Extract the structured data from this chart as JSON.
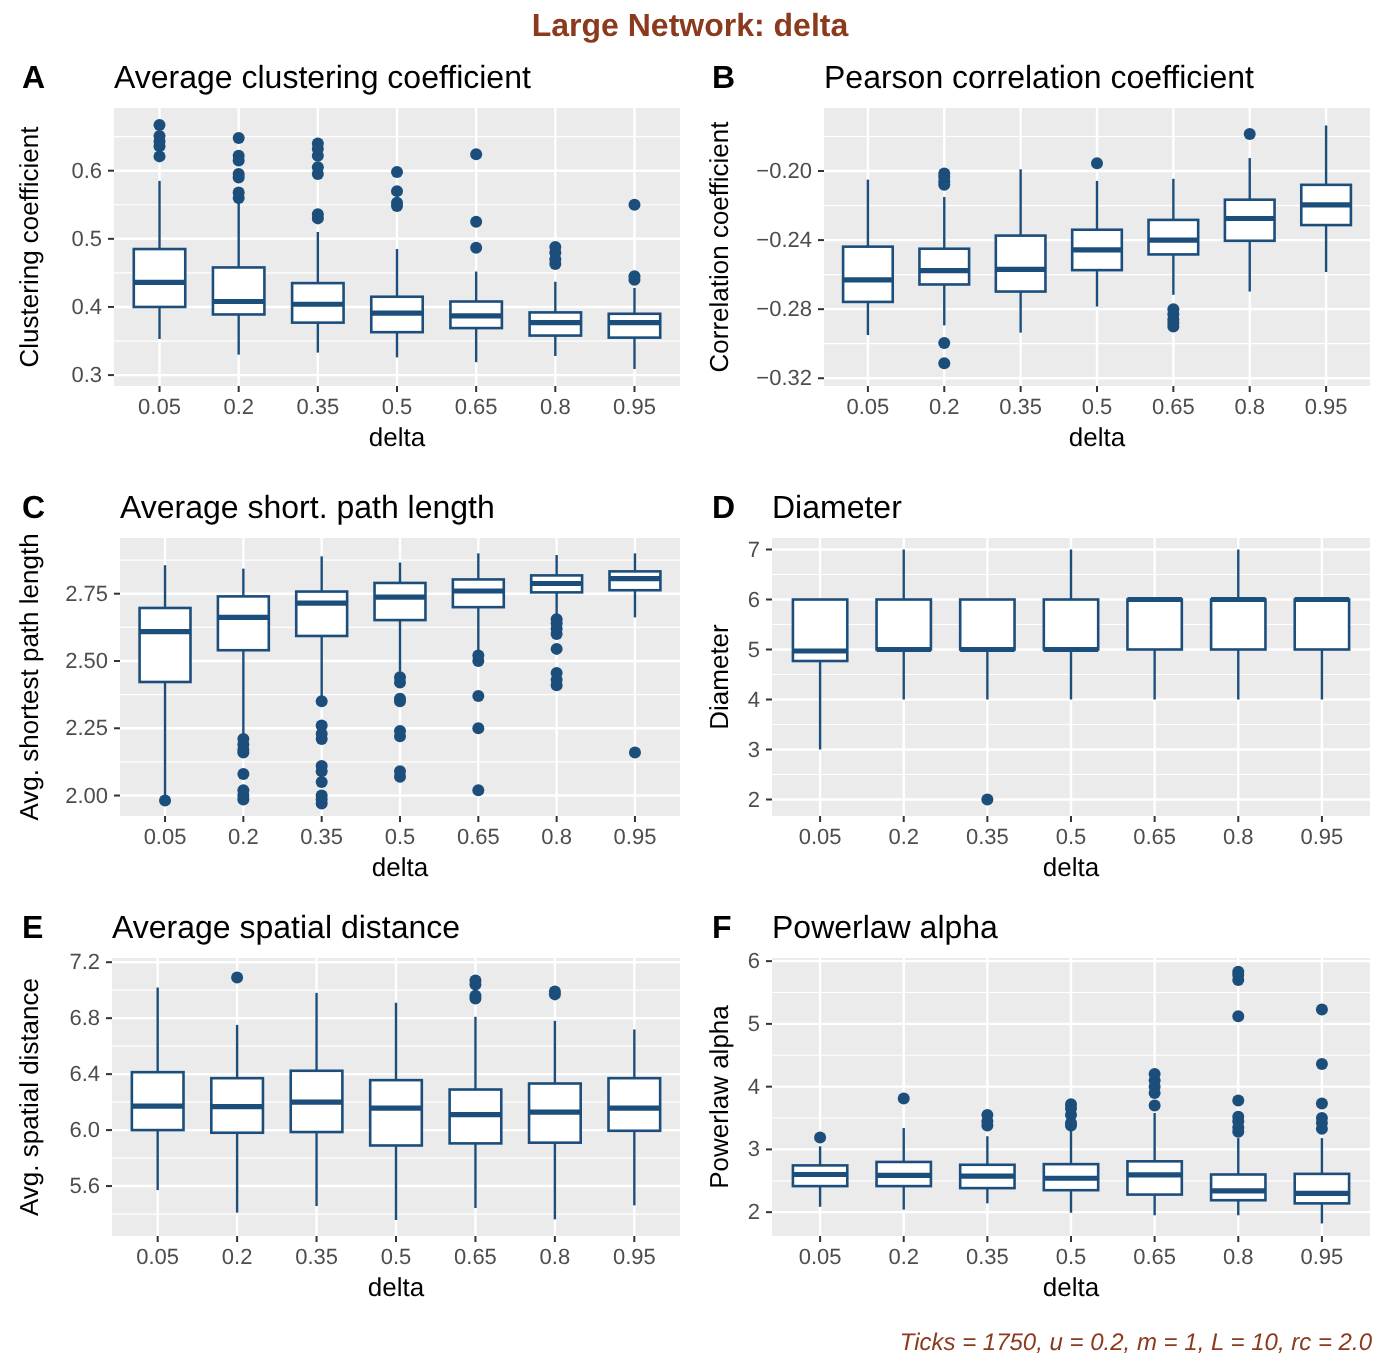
{
  "chart_data": [
    {
      "type": "box",
      "title": "Average clustering coefficient",
      "xlabel": "delta",
      "ylabel": "Clustering coefficient",
      "annotations": [
        "A",
        "Large Network: delta"
      ],
      "categories": [
        "0.05",
        "0.2",
        "0.35",
        "0.5",
        "0.65",
        "0.8",
        "0.95"
      ],
      "ylim": [
        0.284,
        0.692
      ],
      "yticks": [
        {
          "value": 0.3,
          "label": "0.3"
        },
        {
          "value": 0.4,
          "label": "0.4"
        },
        {
          "value": 0.5,
          "label": "0.5"
        },
        {
          "value": 0.6,
          "label": "0.6"
        }
      ],
      "grid": true,
      "series": [
        {
          "color": "#1c4e7c",
          "boxes": [
            {
              "low": 0.353,
              "q1": 0.4,
              "median": 0.436,
              "q3": 0.485,
              "high": 0.585,
              "outliers": [
                0.621,
                0.636,
                0.643,
                0.651,
                0.667
              ]
            },
            {
              "low": 0.33,
              "q1": 0.389,
              "median": 0.408,
              "q3": 0.458,
              "high": 0.555,
              "outliers": [
                0.56,
                0.568,
                0.59,
                0.595,
                0.615,
                0.622,
                0.648
              ]
            },
            {
              "low": 0.333,
              "q1": 0.377,
              "median": 0.404,
              "q3": 0.435,
              "high": 0.51,
              "outliers": [
                0.53,
                0.536,
                0.595,
                0.605,
                0.622,
                0.632,
                0.64
              ]
            },
            {
              "low": 0.326,
              "q1": 0.363,
              "median": 0.391,
              "q3": 0.415,
              "high": 0.485,
              "outliers": [
                0.548,
                0.553,
                0.57,
                0.598
              ]
            },
            {
              "low": 0.319,
              "q1": 0.369,
              "median": 0.387,
              "q3": 0.408,
              "high": 0.452,
              "outliers": [
                0.487,
                0.525,
                0.624
              ]
            },
            {
              "low": 0.328,
              "q1": 0.358,
              "median": 0.377,
              "q3": 0.392,
              "high": 0.437,
              "outliers": [
                0.463,
                0.47,
                0.48,
                0.488
              ]
            },
            {
              "low": 0.309,
              "q1": 0.355,
              "median": 0.377,
              "q3": 0.39,
              "high": 0.428,
              "outliers": [
                0.44,
                0.445,
                0.55
              ]
            }
          ]
        }
      ]
    },
    {
      "type": "box",
      "title": "Pearson correlation coefficient",
      "xlabel": "delta",
      "ylabel": "Correlation coefficient",
      "annotations": [
        "B"
      ],
      "categories": [
        "0.05",
        "0.2",
        "0.35",
        "0.5",
        "0.65",
        "0.8",
        "0.95"
      ],
      "ylim": [
        -0.3245,
        -0.1635
      ],
      "yticks": [
        {
          "value": -0.32,
          "label": "−0.32"
        },
        {
          "value": -0.28,
          "label": "−0.28"
        },
        {
          "value": -0.24,
          "label": "−0.24"
        },
        {
          "value": -0.2,
          "label": "−0.20"
        }
      ],
      "grid": true,
      "series": [
        {
          "color": "#1c4e7c",
          "boxes": [
            {
              "low": -0.295,
              "q1": -0.2758,
              "median": -0.263,
              "q3": -0.2438,
              "high": -0.205
            },
            {
              "low": -0.2894,
              "q1": -0.2657,
              "median": -0.2577,
              "q3": -0.245,
              "high": -0.215,
              "outliers": [
                -0.3113,
                -0.2996,
                -0.208,
                -0.206,
                -0.2035,
                -0.2015
              ]
            },
            {
              "low": -0.2936,
              "q1": -0.2698,
              "median": -0.257,
              "q3": -0.2374,
              "high": -0.199
            },
            {
              "low": -0.2785,
              "q1": -0.2574,
              "median": -0.2457,
              "q3": -0.234,
              "high": -0.2057,
              "outliers": [
                -0.1955
              ]
            },
            {
              "low": -0.2717,
              "q1": -0.2483,
              "median": -0.24,
              "q3": -0.2283,
              "high": -0.2045,
              "outliers": [
                -0.29,
                -0.288,
                -0.286,
                -0.283,
                -0.28
              ]
            },
            {
              "low": -0.2698,
              "q1": -0.2404,
              "median": -0.2275,
              "q3": -0.2166,
              "high": -0.1925,
              "outliers": [
                -0.1785
              ]
            },
            {
              "low": -0.2585,
              "q1": -0.2313,
              "median": -0.2196,
              "q3": -0.208,
              "high": -0.1736
            }
          ]
        }
      ]
    },
    {
      "type": "box",
      "title": "Average short. path length",
      "xlabel": "delta",
      "ylabel": "Avg. shortest path length",
      "annotations": [
        "C"
      ],
      "categories": [
        "0.05",
        "0.2",
        "0.35",
        "0.5",
        "0.65",
        "0.8",
        "0.95"
      ],
      "ylim": [
        1.924,
        2.957
      ],
      "yticks": [
        {
          "value": 2,
          "label": "2.00"
        },
        {
          "value": 2.25,
          "label": "2.25"
        },
        {
          "value": 2.5,
          "label": "2.50"
        },
        {
          "value": 2.75,
          "label": "2.75"
        }
      ],
      "grid": true,
      "series": [
        {
          "color": "#1c4e7c",
          "boxes": [
            {
              "low": 2.0,
              "q1": 2.422,
              "median": 2.609,
              "q3": 2.697,
              "high": 2.856,
              "outliers": [
                1.982
              ]
            },
            {
              "low": 2.225,
              "q1": 2.54,
              "median": 2.662,
              "q3": 2.74,
              "high": 2.843,
              "outliers": [
                1.985,
                2.0,
                2.02,
                2.08,
                2.16,
                2.17,
                2.19,
                2.21
              ]
            },
            {
              "low": 2.37,
              "q1": 2.593,
              "median": 2.715,
              "q3": 2.758,
              "high": 2.889,
              "outliers": [
                1.97,
                1.985,
                2.0,
                2.05,
                2.09,
                2.11,
                2.21,
                2.23,
                2.26,
                2.35
              ]
            },
            {
              "low": 2.46,
              "q1": 2.652,
              "median": 2.737,
              "q3": 2.79,
              "high": 2.866,
              "outliers": [
                2.07,
                2.09,
                2.22,
                2.24,
                2.35,
                2.36,
                2.42,
                2.44
              ]
            },
            {
              "low": 2.535,
              "q1": 2.7,
              "median": 2.76,
              "q3": 2.803,
              "high": 2.9,
              "outliers": [
                2.02,
                2.25,
                2.37,
                2.5,
                2.52
              ]
            },
            {
              "low": 2.674,
              "q1": 2.755,
              "median": 2.788,
              "q3": 2.818,
              "high": 2.894,
              "outliers": [
                2.41,
                2.43,
                2.455,
                2.545,
                2.6,
                2.62,
                2.64,
                2.655
              ]
            },
            {
              "low": 2.662,
              "q1": 2.763,
              "median": 2.806,
              "q3": 2.833,
              "high": 2.9,
              "outliers": [
                2.16
              ]
            }
          ]
        }
      ]
    },
    {
      "type": "box",
      "title": "Diameter",
      "xlabel": "delta",
      "ylabel": "Diameter",
      "annotations": [
        "D"
      ],
      "categories": [
        "0.05",
        "0.2",
        "0.35",
        "0.5",
        "0.65",
        "0.8",
        "0.95"
      ],
      "ylim": [
        1.67,
        7.23
      ],
      "yticks": [
        2,
        3,
        4,
        5,
        6,
        7
      ],
      "grid": true,
      "series": [
        {
          "color": "#1c4e7c",
          "boxes": [
            {
              "low": 3,
              "q1": 4.77,
              "median": 4.97,
              "q3": 6,
              "high": 6
            },
            {
              "low": 4,
              "q1": 5,
              "median": 5,
              "q3": 6,
              "high": 7
            },
            {
              "low": 4,
              "q1": 5,
              "median": 5,
              "q3": 6,
              "high": 6,
              "outliers": [
                2
              ]
            },
            {
              "low": 4,
              "q1": 5,
              "median": 5,
              "q3": 6,
              "high": 7
            },
            {
              "low": 4,
              "q1": 5,
              "median": 6,
              "q3": 6,
              "high": 6
            },
            {
              "low": 4,
              "q1": 5,
              "median": 6,
              "q3": 6,
              "high": 7
            },
            {
              "low": 4,
              "q1": 5,
              "median": 6,
              "q3": 6,
              "high": 6
            }
          ]
        }
      ]
    },
    {
      "type": "box",
      "title": "Average spatial distance",
      "xlabel": "delta",
      "ylabel": "Avg. spatial distance",
      "annotations": [
        "E"
      ],
      "categories": [
        "0.05",
        "0.2",
        "0.35",
        "0.5",
        "0.65",
        "0.8",
        "0.95"
      ],
      "ylim": [
        5.243,
        7.23
      ],
      "yticks": [
        {
          "value": 5.6,
          "label": "5.6"
        },
        {
          "value": 6,
          "label": "6.0"
        },
        {
          "value": 6.4,
          "label": "6.4"
        },
        {
          "value": 6.8,
          "label": "6.8"
        },
        {
          "value": 7.2,
          "label": "7.2"
        }
      ],
      "grid": true,
      "series": [
        {
          "color": "#1c4e7c",
          "boxes": [
            {
              "low": 5.571,
              "q1": 6.0,
              "median": 6.171,
              "q3": 6.414,
              "high": 7.019
            },
            {
              "low": 5.41,
              "q1": 5.981,
              "median": 6.167,
              "q3": 6.371,
              "high": 6.752,
              "outliers": [
                7.09
              ]
            },
            {
              "low": 5.457,
              "q1": 5.986,
              "median": 6.2,
              "q3": 6.424,
              "high": 6.981
            },
            {
              "low": 5.357,
              "q1": 5.89,
              "median": 6.157,
              "q3": 6.357,
              "high": 6.91
            },
            {
              "low": 5.443,
              "q1": 5.905,
              "median": 6.11,
              "q3": 6.29,
              "high": 6.81,
              "outliers": [
                6.94,
                6.96,
                7.04,
                7.07
              ]
            },
            {
              "low": 5.362,
              "q1": 5.91,
              "median": 6.129,
              "q3": 6.333,
              "high": 6.781,
              "outliers": [
                6.97,
                6.99
              ]
            },
            {
              "low": 5.462,
              "q1": 5.995,
              "median": 6.157,
              "q3": 6.371,
              "high": 6.719
            }
          ]
        }
      ]
    },
    {
      "type": "box",
      "title": "Powerlaw alpha",
      "xlabel": "delta",
      "ylabel": "Powerlaw alpha",
      "annotations": [
        "F",
        "Ticks = 1750, u = 0.2, m = 1, L = 10, rc = 2.0"
      ],
      "categories": [
        "0.05",
        "0.2",
        "0.35",
        "0.5",
        "0.65",
        "0.8",
        "0.95"
      ],
      "ylim": [
        1.62,
        6.05
      ],
      "yticks": [
        2,
        3,
        4,
        5,
        6
      ],
      "grid": true,
      "series": [
        {
          "color": "#1c4e7c",
          "boxes": [
            {
              "low": 2.085,
              "q1": 2.415,
              "median": 2.6,
              "q3": 2.745,
              "high": 3.05,
              "outliers": [
                3.19
              ]
            },
            {
              "low": 2.04,
              "q1": 2.415,
              "median": 2.585,
              "q3": 2.8,
              "high": 3.34,
              "outliers": [
                3.81
              ]
            },
            {
              "low": 2.14,
              "q1": 2.383,
              "median": 2.575,
              "q3": 2.755,
              "high": 3.21,
              "outliers": [
                3.38,
                3.45,
                3.55
              ]
            },
            {
              "low": 1.99,
              "q1": 2.35,
              "median": 2.54,
              "q3": 2.765,
              "high": 3.3,
              "outliers": [
                3.38,
                3.42,
                3.55,
                3.65,
                3.72
              ]
            },
            {
              "low": 1.95,
              "q1": 2.28,
              "median": 2.595,
              "q3": 2.81,
              "high": 3.58,
              "outliers": [
                3.7,
                3.9,
                4.0,
                4.1,
                4.2
              ]
            },
            {
              "low": 1.95,
              "q1": 2.19,
              "median": 2.34,
              "q3": 2.6,
              "high": 3.18,
              "outliers": [
                3.28,
                3.35,
                3.45,
                3.52,
                3.78,
                5.12,
                5.7,
                5.78,
                5.83
              ]
            },
            {
              "low": 1.82,
              "q1": 2.14,
              "median": 2.3,
              "q3": 2.61,
              "high": 3.18,
              "outliers": [
                3.33,
                3.42,
                3.5,
                3.73,
                4.36,
                5.23
              ]
            }
          ]
        }
      ]
    }
  ]
}
